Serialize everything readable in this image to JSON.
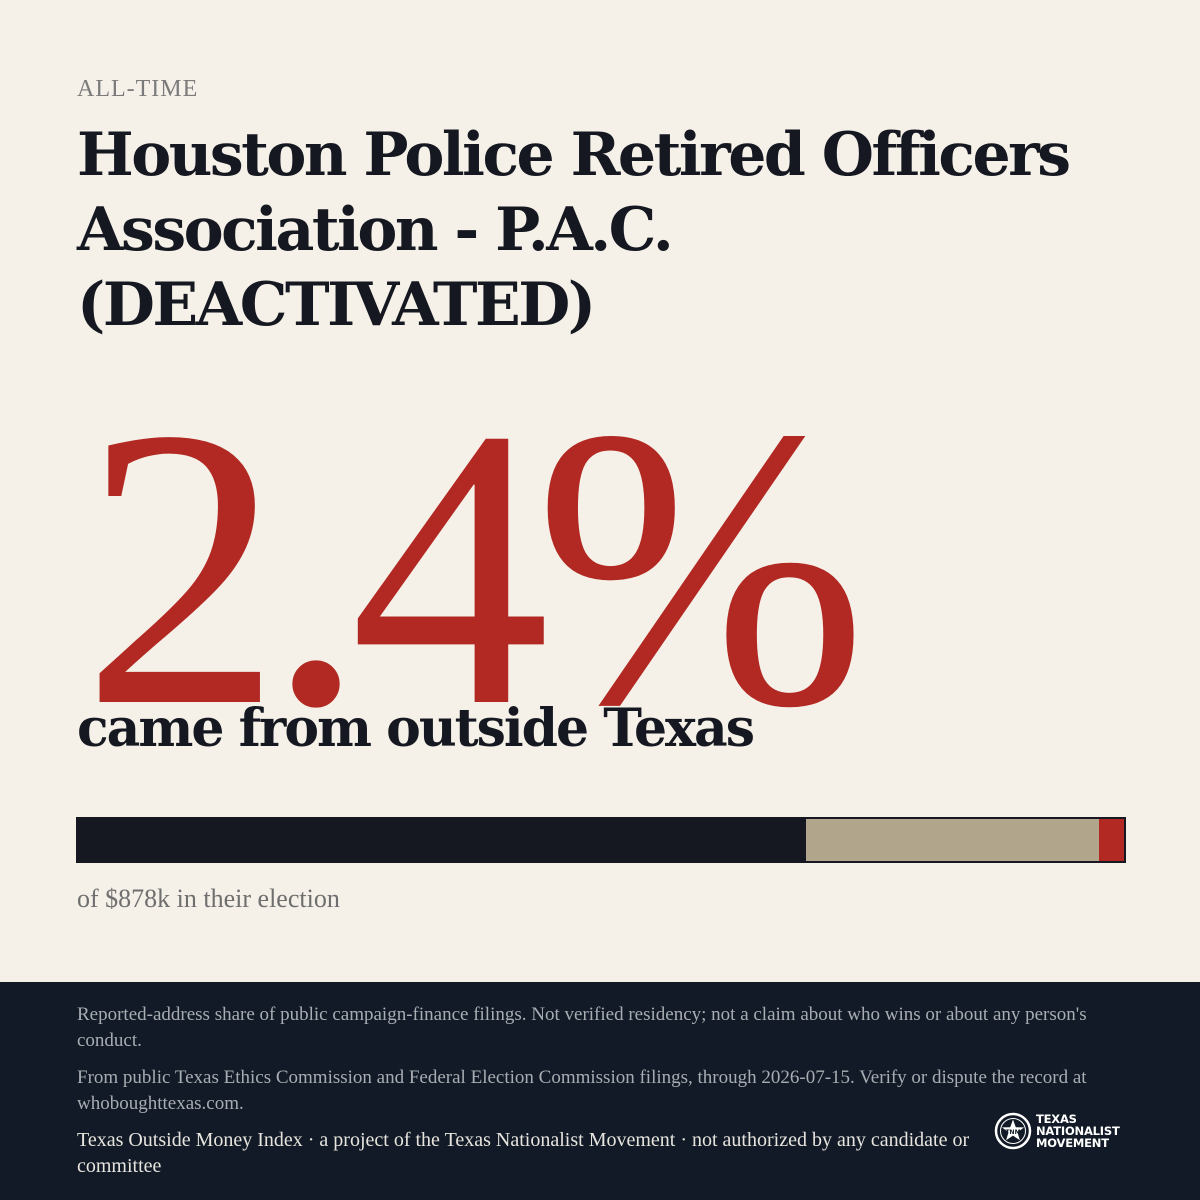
{
  "eyebrow": "ALL-TIME",
  "title": "Houston Police Retired Officers Association - P.A.C. (DEACTIVATED)",
  "headline_value": "2.4%",
  "subline": "came from outside Texas",
  "bar": {
    "segments": [
      {
        "name": "in-texas",
        "share": 0.696,
        "color": "#151820"
      },
      {
        "name": "unknown",
        "share": 0.28,
        "color": "#b1a68c"
      },
      {
        "name": "outside-texas",
        "share": 0.024,
        "color": "#b22822"
      }
    ]
  },
  "bar_note": "of $878k in their election",
  "footer": {
    "disclaimer": "Reported-address share of public campaign-finance filings. Not verified residency; not a claim about who wins or about any person's conduct.",
    "source": "From public Texas Ethics Commission and Federal Election Commission filings, through 2026-07-15. Verify or dispute the record at whoboughttexas.com.",
    "credit": "Texas Outside Money Index · a project of the Texas Nationalist Movement · not authorized by any candidate or committee"
  },
  "logo": {
    "line1": "TEXAS",
    "line2": "NATIONALIST",
    "line3": "MOVEMENT",
    "icon": "star-seal-icon"
  },
  "colors": {
    "background": "#f5f0e8",
    "accent": "#b22822",
    "ink": "#151820",
    "footer": "#111a26"
  }
}
